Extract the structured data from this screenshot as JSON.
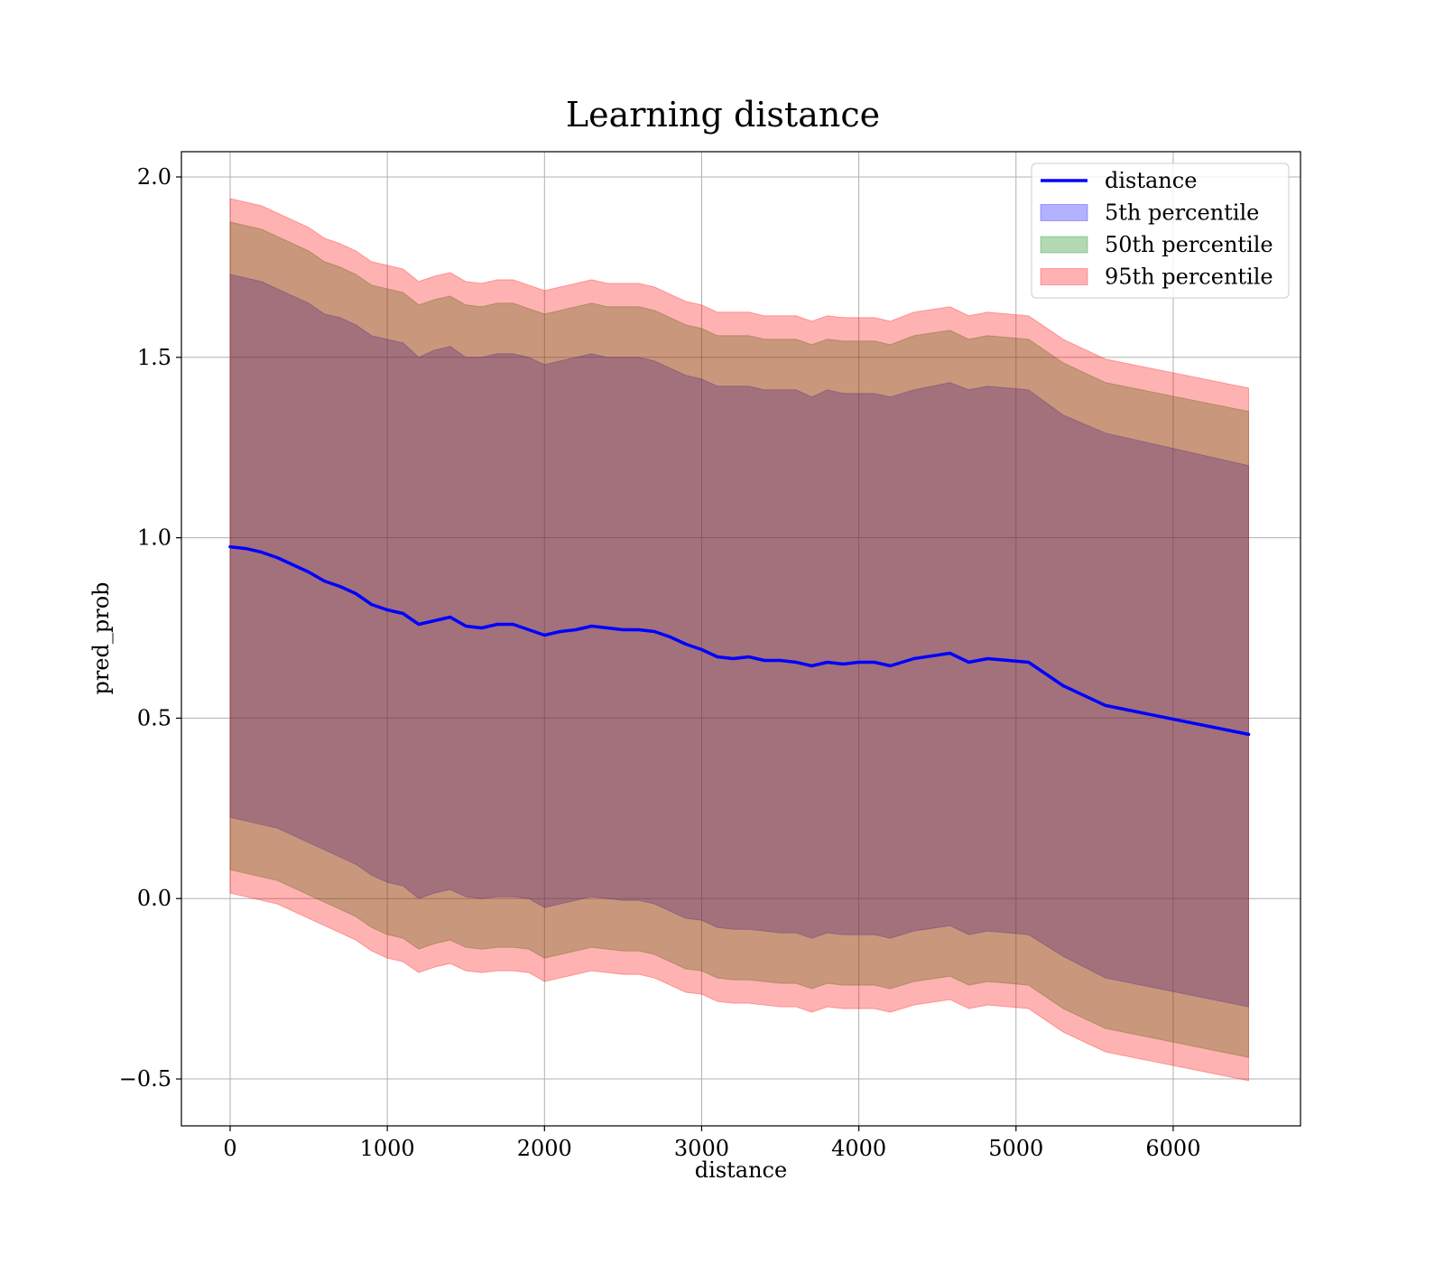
{
  "chart_data": {
    "type": "line",
    "title": "Learning distance",
    "xlabel": "distance",
    "ylabel": "pred_prob",
    "xlim": [
      -310,
      6810
    ],
    "ylim": [
      -0.63,
      2.07
    ],
    "x_ticks": [
      0,
      1000,
      2000,
      3000,
      4000,
      5000,
      6000
    ],
    "x_tick_labels": [
      "0",
      "1000",
      "2000",
      "3000",
      "4000",
      "5000",
      "6000"
    ],
    "y_ticks": [
      -0.5,
      0.0,
      0.5,
      1.0,
      1.5,
      2.0
    ],
    "y_tick_labels": [
      "−0.5",
      "0.0",
      "0.5",
      "1.0",
      "1.5",
      "2.0"
    ],
    "grid": true,
    "legend_position": "top-right",
    "x": [
      0,
      100,
      200,
      300,
      400,
      500,
      600,
      700,
      800,
      900,
      1000,
      1100,
      1200,
      1300,
      1400,
      1500,
      1600,
      1700,
      1800,
      1900,
      2000,
      2100,
      2200,
      2300,
      2400,
      2500,
      2600,
      2700,
      2800,
      2900,
      3000,
      3100,
      3200,
      3300,
      3400,
      3500,
      3600,
      3700,
      3800,
      3900,
      4000,
      4100,
      4200,
      4350,
      4580,
      4700,
      4820,
      5080,
      5300,
      5570,
      6480
    ],
    "series": [
      {
        "name": "distance",
        "kind": "line",
        "color": "#0000ff",
        "values": [
          0.975,
          0.97,
          0.96,
          0.945,
          0.925,
          0.905,
          0.88,
          0.865,
          0.845,
          0.815,
          0.8,
          0.79,
          0.76,
          0.77,
          0.78,
          0.755,
          0.75,
          0.76,
          0.76,
          0.745,
          0.73,
          0.74,
          0.745,
          0.755,
          0.75,
          0.745,
          0.745,
          0.74,
          0.725,
          0.705,
          0.69,
          0.67,
          0.665,
          0.67,
          0.66,
          0.66,
          0.655,
          0.645,
          0.655,
          0.65,
          0.655,
          0.655,
          0.645,
          0.665,
          0.68,
          0.655,
          0.665,
          0.655,
          0.59,
          0.535,
          0.455
        ]
      },
      {
        "name": "5th percentile",
        "kind": "band",
        "color": "#0000ff",
        "upper": [
          1.73,
          1.72,
          1.71,
          1.69,
          1.67,
          1.65,
          1.62,
          1.61,
          1.59,
          1.56,
          1.55,
          1.54,
          1.5,
          1.52,
          1.53,
          1.5,
          1.5,
          1.51,
          1.51,
          1.5,
          1.48,
          1.49,
          1.5,
          1.51,
          1.5,
          1.5,
          1.5,
          1.49,
          1.47,
          1.45,
          1.44,
          1.42,
          1.42,
          1.42,
          1.41,
          1.41,
          1.41,
          1.39,
          1.41,
          1.4,
          1.4,
          1.4,
          1.39,
          1.41,
          1.43,
          1.41,
          1.42,
          1.41,
          1.34,
          1.29,
          1.2
        ],
        "lower": [
          0.225,
          0.215,
          0.205,
          0.195,
          0.175,
          0.155,
          0.135,
          0.115,
          0.095,
          0.065,
          0.045,
          0.035,
          0.0,
          0.015,
          0.025,
          0.005,
          0.0,
          0.005,
          0.005,
          0.0,
          -0.025,
          -0.015,
          -0.005,
          0.005,
          0.0,
          -0.005,
          -0.005,
          -0.015,
          -0.035,
          -0.055,
          -0.06,
          -0.08,
          -0.085,
          -0.085,
          -0.09,
          -0.095,
          -0.095,
          -0.11,
          -0.095,
          -0.1,
          -0.1,
          -0.1,
          -0.11,
          -0.09,
          -0.075,
          -0.1,
          -0.09,
          -0.1,
          -0.16,
          -0.22,
          -0.3
        ]
      },
      {
        "name": "50th percentile",
        "kind": "band",
        "color": "#008000",
        "upper": [
          1.875,
          1.865,
          1.855,
          1.835,
          1.815,
          1.795,
          1.765,
          1.75,
          1.73,
          1.7,
          1.69,
          1.68,
          1.645,
          1.66,
          1.67,
          1.645,
          1.64,
          1.65,
          1.65,
          1.635,
          1.62,
          1.63,
          1.64,
          1.65,
          1.64,
          1.64,
          1.64,
          1.63,
          1.61,
          1.59,
          1.58,
          1.56,
          1.56,
          1.56,
          1.55,
          1.55,
          1.55,
          1.535,
          1.55,
          1.545,
          1.545,
          1.545,
          1.535,
          1.56,
          1.575,
          1.55,
          1.56,
          1.55,
          1.485,
          1.43,
          1.35
        ],
        "lower": [
          0.08,
          0.07,
          0.06,
          0.05,
          0.03,
          0.01,
          -0.01,
          -0.03,
          -0.05,
          -0.08,
          -0.1,
          -0.11,
          -0.14,
          -0.125,
          -0.115,
          -0.135,
          -0.14,
          -0.135,
          -0.135,
          -0.14,
          -0.165,
          -0.155,
          -0.145,
          -0.135,
          -0.14,
          -0.145,
          -0.145,
          -0.155,
          -0.175,
          -0.195,
          -0.2,
          -0.22,
          -0.225,
          -0.225,
          -0.23,
          -0.235,
          -0.235,
          -0.25,
          -0.235,
          -0.24,
          -0.24,
          -0.24,
          -0.25,
          -0.23,
          -0.215,
          -0.24,
          -0.23,
          -0.24,
          -0.305,
          -0.36,
          -0.44
        ]
      },
      {
        "name": "95th percentile",
        "kind": "band",
        "color": "#ff0000",
        "upper": [
          1.94,
          1.93,
          1.92,
          1.9,
          1.88,
          1.86,
          1.83,
          1.815,
          1.795,
          1.765,
          1.755,
          1.745,
          1.71,
          1.725,
          1.735,
          1.71,
          1.705,
          1.715,
          1.715,
          1.7,
          1.685,
          1.695,
          1.705,
          1.715,
          1.705,
          1.705,
          1.705,
          1.695,
          1.675,
          1.655,
          1.645,
          1.625,
          1.625,
          1.625,
          1.615,
          1.615,
          1.615,
          1.6,
          1.615,
          1.61,
          1.61,
          1.61,
          1.6,
          1.625,
          1.64,
          1.615,
          1.625,
          1.615,
          1.55,
          1.495,
          1.415
        ],
        "lower": [
          0.015,
          0.005,
          -0.005,
          -0.015,
          -0.035,
          -0.055,
          -0.075,
          -0.095,
          -0.115,
          -0.145,
          -0.165,
          -0.175,
          -0.205,
          -0.19,
          -0.18,
          -0.2,
          -0.205,
          -0.2,
          -0.2,
          -0.205,
          -0.23,
          -0.22,
          -0.21,
          -0.2,
          -0.205,
          -0.21,
          -0.21,
          -0.22,
          -0.24,
          -0.26,
          -0.265,
          -0.285,
          -0.29,
          -0.29,
          -0.295,
          -0.3,
          -0.3,
          -0.315,
          -0.3,
          -0.305,
          -0.305,
          -0.305,
          -0.315,
          -0.295,
          -0.28,
          -0.305,
          -0.295,
          -0.305,
          -0.37,
          -0.425,
          -0.505
        ]
      }
    ]
  }
}
